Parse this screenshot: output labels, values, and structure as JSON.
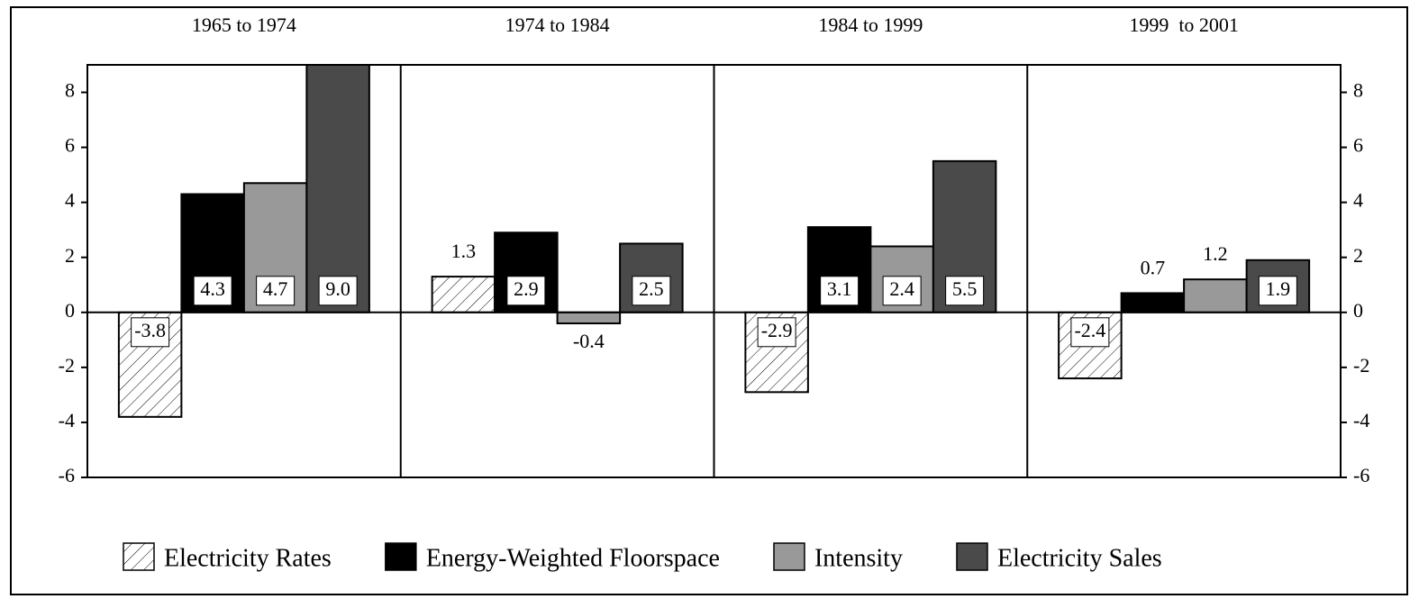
{
  "chart_data": {
    "type": "bar",
    "categories": [
      "1965 to 1974",
      "1974 to 1984",
      "1984 to 1999",
      "1999  to 2001"
    ],
    "series": [
      {
        "name": "Electricity Rates",
        "color": "#ffffff",
        "pattern": "hatch",
        "values": [
          -3.8,
          1.3,
          -2.9,
          -2.4
        ],
        "value_labels": [
          "-3.8",
          "1.3",
          "-2.9",
          "-2.4"
        ]
      },
      {
        "name": "Energy-Weighted Floorspace",
        "color": "#000000",
        "values": [
          4.3,
          2.9,
          3.1,
          0.7
        ],
        "value_labels": [
          "4.3",
          "2.9",
          "3.1",
          "0.7"
        ]
      },
      {
        "name": "Intensity",
        "color": "#999999",
        "values": [
          4.7,
          -0.4,
          2.4,
          1.2
        ],
        "value_labels": [
          "4.7",
          "-0.4",
          "2.4",
          "1.2"
        ]
      },
      {
        "name": "Electricity Sales",
        "color": "#4a4a4a",
        "values": [
          9.0,
          2.5,
          5.5,
          1.9
        ],
        "value_labels": [
          "9.0",
          "2.5",
          "5.5",
          "1.9"
        ]
      }
    ],
    "ylim": [
      -6,
      9
    ],
    "yticks": [
      -6,
      -4,
      -2,
      0,
      2,
      4,
      6,
      8
    ],
    "right_axis": true,
    "legend": "bottom"
  }
}
